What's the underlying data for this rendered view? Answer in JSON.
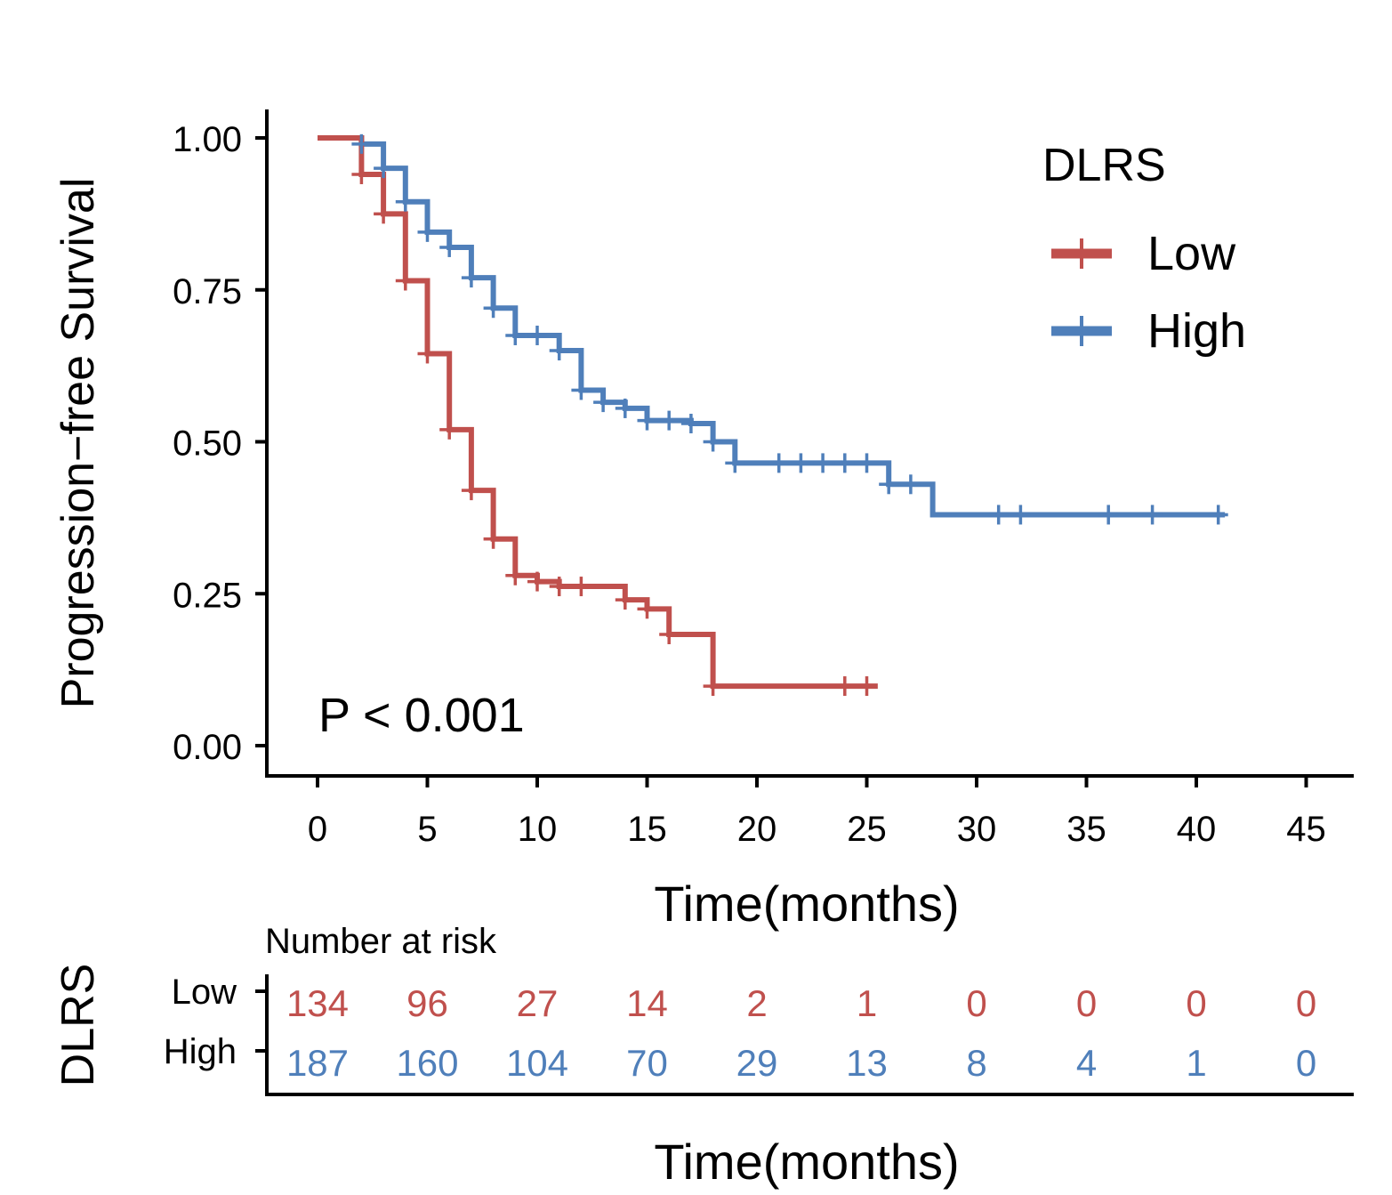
{
  "colors": {
    "low": "#c0504d",
    "high": "#4f7fba",
    "axis": "#000000"
  },
  "chart_data": {
    "type": "line",
    "subtype": "kaplan-meier",
    "title": "",
    "xlabel": "Time(months)",
    "ylabel": "Progression−free Survival",
    "xlim": [
      0,
      45
    ],
    "ylim": [
      0,
      1
    ],
    "x_ticks": [
      "0",
      "5",
      "10",
      "15",
      "20",
      "25",
      "30",
      "35",
      "40",
      "45"
    ],
    "x_tick_values": [
      0,
      5,
      10,
      15,
      20,
      25,
      30,
      35,
      40,
      45
    ],
    "y_ticks": [
      "0.00",
      "0.25",
      "0.50",
      "0.75",
      "1.00"
    ],
    "y_tick_values": [
      0,
      0.25,
      0.5,
      0.75,
      1.0
    ],
    "legend": {
      "title": "DLRS",
      "position": "top-right"
    },
    "annotation": "P < 0.001",
    "series": [
      {
        "name": "Low",
        "color_key": "low",
        "steps": [
          [
            0,
            1.0
          ],
          [
            2,
            0.94
          ],
          [
            3,
            0.875
          ],
          [
            4,
            0.765
          ],
          [
            5,
            0.645
          ],
          [
            6,
            0.52
          ],
          [
            7,
            0.42
          ],
          [
            8,
            0.34
          ],
          [
            9,
            0.28
          ],
          [
            10,
            0.27
          ],
          [
            11,
            0.262
          ],
          [
            14,
            0.24
          ],
          [
            15,
            0.225
          ],
          [
            16,
            0.183
          ],
          [
            18,
            0.098
          ],
          [
            25.5,
            0.098
          ]
        ],
        "censor_times": [
          2,
          3,
          4,
          5,
          6,
          7,
          8,
          9,
          10,
          11,
          12,
          14,
          15,
          16,
          18,
          24,
          25
        ]
      },
      {
        "name": "High",
        "color_key": "high",
        "steps": [
          [
            0,
            1.0
          ],
          [
            2,
            0.99
          ],
          [
            3,
            0.95
          ],
          [
            4,
            0.895
          ],
          [
            5,
            0.845
          ],
          [
            6,
            0.82
          ],
          [
            7,
            0.77
          ],
          [
            8,
            0.72
          ],
          [
            9,
            0.675
          ],
          [
            11,
            0.65
          ],
          [
            12,
            0.585
          ],
          [
            13,
            0.565
          ],
          [
            14,
            0.555
          ],
          [
            15,
            0.535
          ],
          [
            17,
            0.53
          ],
          [
            18,
            0.5
          ],
          [
            19,
            0.465
          ],
          [
            26,
            0.43
          ],
          [
            28,
            0.38
          ],
          [
            41.3,
            0.38
          ]
        ],
        "censor_times": [
          2,
          3,
          4,
          5,
          6,
          7,
          8,
          9,
          10,
          11,
          12,
          13,
          14,
          15,
          16,
          17,
          18,
          19,
          21,
          22,
          23,
          24,
          25,
          26,
          27,
          31,
          32,
          36,
          38,
          41
        ]
      }
    ],
    "risk_table": {
      "title": "Number at risk",
      "ylabel": "DLRS",
      "xlabel": "Time(months)",
      "times": [
        0,
        5,
        10,
        15,
        20,
        25,
        30,
        35,
        40,
        45
      ],
      "rows": [
        {
          "name": "Low",
          "color_key": "low",
          "values": [
            "134",
            "96",
            "27",
            "14",
            "2",
            "1",
            "0",
            "0",
            "0",
            "0"
          ]
        },
        {
          "name": "High",
          "color_key": "high",
          "values": [
            "187",
            "160",
            "104",
            "70",
            "29",
            "13",
            "8",
            "4",
            "1",
            "0"
          ]
        }
      ]
    }
  }
}
